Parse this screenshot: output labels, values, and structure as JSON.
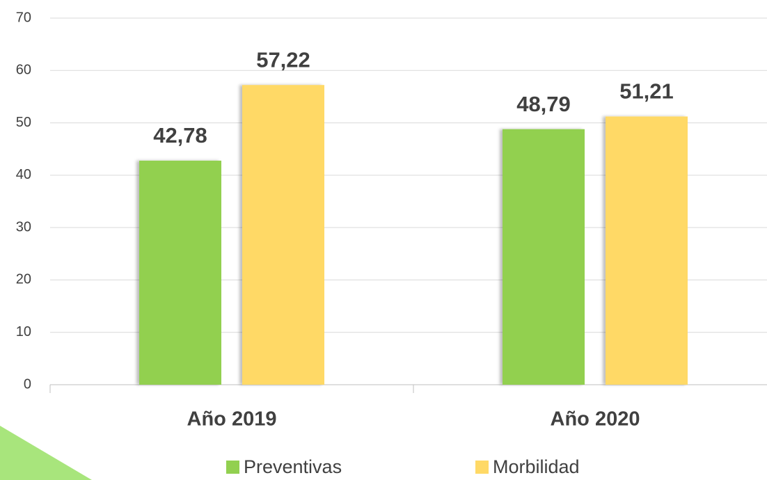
{
  "chart_data": {
    "type": "bar",
    "categories": [
      "Año 2019",
      "Año 2020"
    ],
    "series": [
      {
        "name": "Preventivas",
        "color": "#92d050",
        "values": [
          42.78,
          48.79
        ],
        "value_labels": [
          "42,78",
          "48,79"
        ]
      },
      {
        "name": "Morbilidad",
        "color": "#ffd966",
        "values": [
          57.22,
          51.21
        ],
        "value_labels": [
          "57,22",
          "51,21"
        ]
      }
    ],
    "ylim": [
      0,
      70
    ],
    "yticks": [
      0,
      10,
      20,
      30,
      40,
      50,
      60,
      70
    ],
    "grid": true,
    "legend": "bottom"
  }
}
